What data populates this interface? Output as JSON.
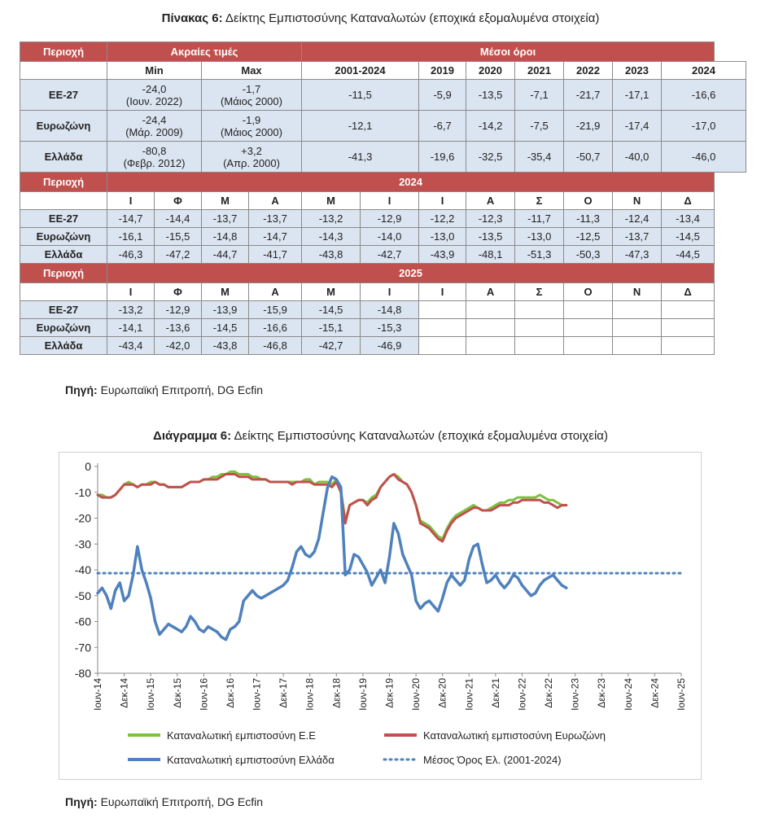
{
  "table": {
    "title_prefix": "Πίνακας 6:",
    "title_text": "Δείκτης Εμπιστοσύνης Καταναλωτών (εποχικά εξομαλυμένα στοιχεία)",
    "header": {
      "region": "Περιοχή",
      "extremes": "Ακραίες τιμές",
      "averages": "Μέσοι όροι",
      "min": "Min",
      "max": "Max",
      "years": [
        "2001-2024",
        "2019",
        "2020",
        "2021",
        "2022",
        "2023",
        "2024"
      ]
    },
    "summary_rows": [
      {
        "region": "ΕΕ-27",
        "min_value": "-24,0",
        "min_date": "(Ιουν. 2022)",
        "max_value": "-1,7",
        "max_date": "(Μάιος 2000)",
        "averages": [
          "-11,5",
          "-5,9",
          "-13,5",
          "-7,1",
          "-21,7",
          "-17,1",
          "-16,6"
        ]
      },
      {
        "region": "Ευρωζώνη",
        "min_value": "-24,4",
        "min_date": "(Μάρ. 2009)",
        "max_value": "-1,9",
        "max_date": "(Μάιος 2000)",
        "averages": [
          "-12,1",
          "-6,7",
          "-14,2",
          "-7,5",
          "-21,9",
          "-17,4",
          "-17,0"
        ]
      },
      {
        "region": "Ελλάδα",
        "min_value": "-80,8",
        "min_date": "(Φεβρ. 2012)",
        "max_value": "+3,2",
        "max_date": "(Απρ. 2000)",
        "averages": [
          "-41,3",
          "-19,6",
          "-32,5",
          "-35,4",
          "-50,7",
          "-40,0",
          "-46,0"
        ]
      }
    ],
    "months": [
      "Ι",
      "Φ",
      "Μ",
      "Α",
      "Μ",
      "Ι",
      "Ι",
      "Α",
      "Σ",
      "Ο",
      "Ν",
      "Δ"
    ],
    "year_2024_label": "2024",
    "rows_2024": [
      {
        "region": "ΕΕ-27",
        "values": [
          "-14,7",
          "-14,4",
          "-13,7",
          "-13,7",
          "-13,2",
          "-12,9",
          "-12,2",
          "-12,3",
          "-11,7",
          "-11,3",
          "-12,4",
          "-13,4"
        ]
      },
      {
        "region": "Ευρωζώνη",
        "values": [
          "-16,1",
          "-15,5",
          "-14,8",
          "-14,7",
          "-14,3",
          "-14,0",
          "-13,0",
          "-13,5",
          "-13,0",
          "-12,5",
          "-13,7",
          "-14,5"
        ]
      },
      {
        "region": "Ελλάδα",
        "values": [
          "-46,3",
          "-47,2",
          "-44,7",
          "-41,7",
          "-43,8",
          "-42,7",
          "-43,9",
          "-48,1",
          "-51,3",
          "-50,3",
          "-47,3",
          "-44,5"
        ]
      }
    ],
    "year_2025_label": "2025",
    "rows_2025": [
      {
        "region": "ΕΕ-27",
        "values": [
          "-13,2",
          "-12,9",
          "-13,9",
          "-15,9",
          "-14,5",
          "-14,8",
          "",
          "",
          "",
          "",
          "",
          ""
        ]
      },
      {
        "region": "Ευρωζώνη",
        "values": [
          "-14,1",
          "-13,6",
          "-14,5",
          "-16,6",
          "-15,1",
          "-15,3",
          "",
          "",
          "",
          "",
          "",
          ""
        ]
      },
      {
        "region": "Ελλάδα",
        "values": [
          "-43,4",
          "-42,0",
          "-43,8",
          "-46,8",
          "-42,7",
          "-46,9",
          "",
          "",
          "",
          "",
          "",
          ""
        ]
      }
    ],
    "source_label": "Πηγή:",
    "source_text": "Ευρωπαϊκή Επιτροπή, DG Ecfin"
  },
  "chart_title_prefix": "Διάγραμμα 6:",
  "chart_title_text": "Δείκτης Εμπιστοσύνης Καταναλωτών (εποχικά εξομαλυμένα στοιχεία)",
  "chart_source_label": "Πηγή:",
  "chart_source_text": "Ευρωπαϊκή Επιτροπή, DG Ecfin",
  "chart_data": {
    "type": "line",
    "ylim": [
      -80,
      0
    ],
    "yticks": [
      0,
      -10,
      -20,
      -30,
      -40,
      -50,
      -60,
      -70,
      -80
    ],
    "x_labels": [
      "Ιουν-14",
      "Δεκ-14",
      "Ιουν-15",
      "Δεκ-15",
      "Ιουν-16",
      "Δεκ-16",
      "Ιουν-17",
      "Δεκ-17",
      "Ιουν-18",
      "Δεκ-18",
      "Ιουν-19",
      "Δεκ-19",
      "Ιουν-20",
      "Δεκ-20",
      "Ιουν-21",
      "Δεκ-21",
      "Ιουν-22",
      "Δεκ-22",
      "Ιουν-23",
      "Δεκ-23",
      "Ιουν-24",
      "Δεκ-24",
      "Ιουν-25"
    ],
    "x_start": "Ιουν-14",
    "months_per_label": 6,
    "series": [
      {
        "name": "Καταναλωτική εμπιστοσύνη Ε.Ε",
        "color": "#7dc142",
        "style": "solid",
        "values": [
          -11,
          -11,
          -12,
          -12,
          -11,
          -9,
          -7,
          -6,
          -7,
          -8,
          -7,
          -7,
          -6,
          -6,
          -7,
          -7,
          -8,
          -8,
          -8,
          -8,
          -7,
          -6,
          -6,
          -6,
          -5,
          -5,
          -4,
          -4,
          -3,
          -3,
          -2,
          -2,
          -3,
          -3,
          -3,
          -4,
          -4,
          -5,
          -5,
          -6,
          -6,
          -6,
          -6,
          -6,
          -6,
          -6,
          -6,
          -5,
          -5,
          -7,
          -6,
          -6,
          -6,
          -7,
          -5,
          -9,
          -21,
          -15,
          -14,
          -13,
          -13,
          -14,
          -12,
          -11,
          -8,
          -6,
          -4,
          -3,
          -4,
          -6,
          -7,
          -10,
          -15,
          -21,
          -22,
          -23,
          -25,
          -27,
          -28,
          -24,
          -21,
          -19,
          -18,
          -17,
          -16,
          -15,
          -16,
          -17,
          -17,
          -16,
          -15,
          -14,
          -14,
          -13,
          -13,
          -12,
          -12,
          -12,
          -12,
          -12,
          -11,
          -12,
          -13,
          -13,
          -14,
          -15,
          -15
        ]
      },
      {
        "name": "Καταναλωτική εμπιστοσύνη Ευρωζώνη",
        "color": "#c0504d",
        "style": "solid",
        "values": [
          -11,
          -12,
          -12,
          -12,
          -11,
          -9,
          -7,
          -7,
          -7,
          -8,
          -7,
          -7,
          -7,
          -6,
          -7,
          -7,
          -8,
          -8,
          -8,
          -8,
          -7,
          -6,
          -6,
          -6,
          -5,
          -5,
          -5,
          -5,
          -4,
          -3,
          -3,
          -3,
          -4,
          -4,
          -4,
          -5,
          -5,
          -5,
          -5,
          -6,
          -6,
          -6,
          -6,
          -6,
          -7,
          -6,
          -6,
          -6,
          -6,
          -7,
          -7,
          -7,
          -7,
          -8,
          -6,
          -10,
          -22,
          -15,
          -14,
          -13,
          -13,
          -15,
          -13,
          -12,
          -8,
          -6,
          -4,
          -3,
          -5,
          -6,
          -7,
          -10,
          -15,
          -22,
          -23,
          -24,
          -26,
          -28,
          -29,
          -25,
          -22,
          -20,
          -19,
          -18,
          -17,
          -16,
          -16,
          -17,
          -17,
          -17,
          -16,
          -15,
          -15,
          -15,
          -14,
          -14,
          -13,
          -13,
          -13,
          -13,
          -13,
          -14,
          -14,
          -15,
          -16,
          -15,
          -15
        ]
      },
      {
        "name": "Καταναλωτική εμπιστοσύνη Ελλάδα",
        "color": "#4f81bd",
        "style": "solid",
        "values": [
          -49,
          -47,
          -50,
          -55,
          -48,
          -45,
          -52,
          -50,
          -42,
          -31,
          -40,
          -45,
          -51,
          -60,
          -65,
          -63,
          -61,
          -62,
          -63,
          -64,
          -62,
          -58,
          -60,
          -63,
          -64,
          -62,
          -63,
          -64,
          -66,
          -67,
          -63,
          -62,
          -60,
          -52,
          -50,
          -48,
          -50,
          -51,
          -50,
          -49,
          -48,
          -47,
          -46,
          -44,
          -39,
          -33,
          -31,
          -34,
          -35,
          -33,
          -28,
          -18,
          -8,
          -4,
          -5,
          -8,
          -42,
          -40,
          -34,
          -35,
          -38,
          -41,
          -46,
          -43,
          -40,
          -45,
          -35,
          -22,
          -26,
          -34,
          -38,
          -42,
          -52,
          -55,
          -53,
          -52,
          -54,
          -56,
          -51,
          -45,
          -42,
          -44,
          -46,
          -44,
          -36,
          -31,
          -30,
          -38,
          -45,
          -44,
          -42,
          -45,
          -47,
          -45,
          -42,
          -43,
          -46,
          -48,
          -50,
          -49,
          -46,
          -44,
          -43,
          -42,
          -44,
          -46,
          -47
        ]
      },
      {
        "name": "Μέσος Όρος Ελ. (2001-2024)",
        "color": "#4f81bd",
        "style": "dotted",
        "value": -41.3
      }
    ]
  }
}
